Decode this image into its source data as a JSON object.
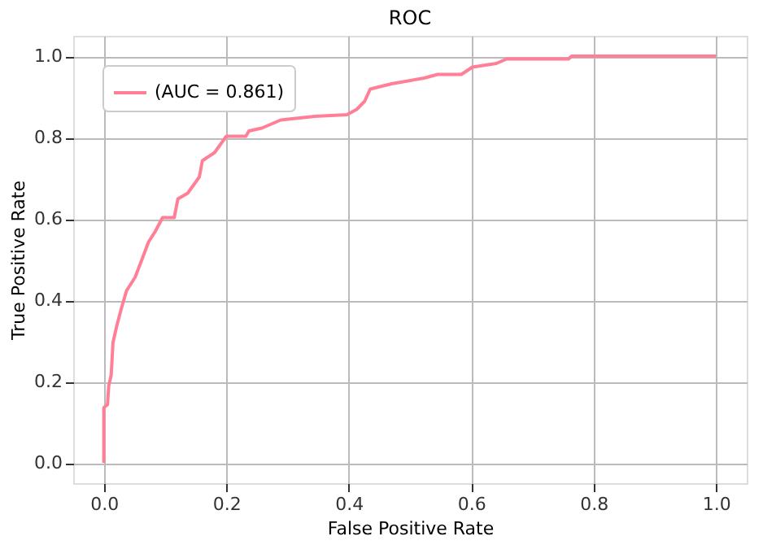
{
  "chart_data": {
    "type": "line",
    "title": "ROC",
    "xlabel": "False Positive Rate",
    "ylabel": "True Positive Rate",
    "xlim": [
      -0.05,
      1.05
    ],
    "ylim": [
      -0.05,
      1.05
    ],
    "xticks": [
      {
        "value": 0,
        "label": "0.0"
      },
      {
        "value": 0.2,
        "label": "0.2"
      },
      {
        "value": 0.4,
        "label": "0.4"
      },
      {
        "value": 0.6,
        "label": "0.6"
      },
      {
        "value": 0.8,
        "label": "0.8"
      },
      {
        "value": 1,
        "label": "1.0"
      }
    ],
    "yticks": [
      {
        "value": 0,
        "label": "0.0"
      },
      {
        "value": 0.2,
        "label": "0.2"
      },
      {
        "value": 0.4,
        "label": "0.4"
      },
      {
        "value": 0.6,
        "label": "0.6"
      },
      {
        "value": 0.8,
        "label": "0.8"
      },
      {
        "value": 1,
        "label": "1.0"
      }
    ],
    "grid": true,
    "legend": "top left",
    "line_style": "solid",
    "marker": "none",
    "series": [
      {
        "name": "(AUC = 0.861)",
        "color": "#ff8096",
        "x": [
          0,
          0,
          0.006,
          0.008,
          0.012,
          0.015,
          0.021,
          0.028,
          0.037,
          0.051,
          0.063,
          0.073,
          0.084,
          0.096,
          0.115,
          0.121,
          0.137,
          0.156,
          0.161,
          0.181,
          0.2,
          0.232,
          0.237,
          0.258,
          0.289,
          0.345,
          0.397,
          0.413,
          0.426,
          0.435,
          0.47,
          0.523,
          0.545,
          0.584,
          0.602,
          0.641,
          0.658,
          0.759,
          0.764,
          1.0
        ],
        "values": [
          0,
          0.136,
          0.143,
          0.189,
          0.216,
          0.296,
          0.336,
          0.376,
          0.423,
          0.456,
          0.503,
          0.543,
          0.569,
          0.603,
          0.603,
          0.649,
          0.663,
          0.703,
          0.743,
          0.763,
          0.803,
          0.803,
          0.816,
          0.823,
          0.843,
          0.852,
          0.856,
          0.869,
          0.889,
          0.919,
          0.932,
          0.946,
          0.955,
          0.955,
          0.973,
          0.982,
          0.993,
          0.993,
          1.0,
          1.0
        ]
      }
    ]
  }
}
